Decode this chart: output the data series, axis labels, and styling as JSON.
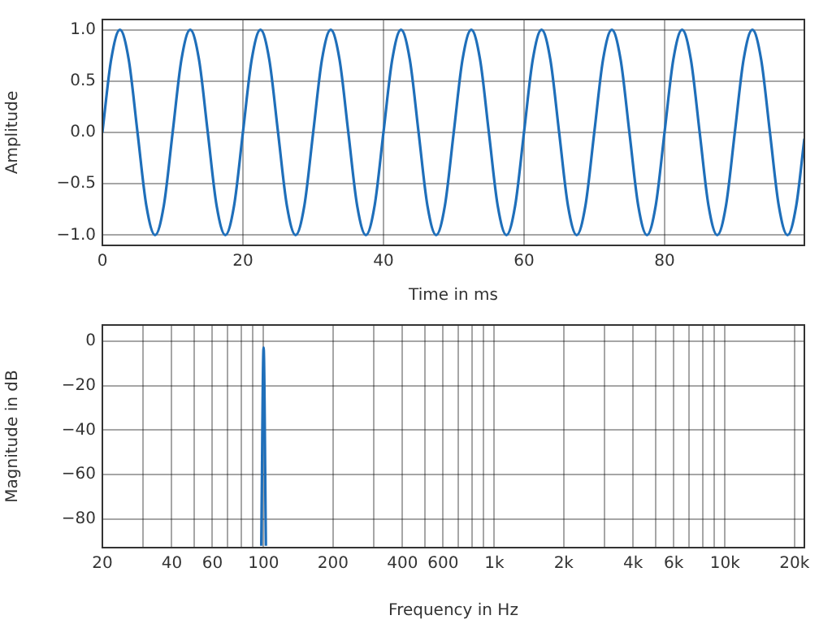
{
  "chart_data": [
    {
      "type": "line",
      "xlabel": "Time in ms",
      "ylabel": "Amplitude",
      "color": "#1f6fba",
      "marker": "none",
      "grid": true,
      "x": [
        0,
        1.25,
        2.5,
        3.75,
        5,
        6.25,
        7.5,
        8.75,
        10,
        11.25,
        12.5,
        13.75,
        15,
        16.25,
        17.5,
        18.75,
        20,
        21.25,
        22.5,
        23.75,
        25,
        26.25,
        27.5,
        28.75,
        30,
        31.25,
        32.5,
        33.75,
        35,
        36.25,
        37.5,
        38.75,
        40,
        41.25,
        42.5,
        43.75,
        45,
        46.25,
        47.5,
        48.75,
        50,
        51.25,
        52.5,
        53.75,
        55,
        56.25,
        57.5,
        58.75,
        60,
        61.25,
        62.5,
        63.75,
        65,
        66.25,
        67.5,
        68.75,
        70,
        71.25,
        72.5,
        73.75,
        75,
        76.25,
        77.5,
        78.75,
        80,
        81.25,
        82.5,
        83.75,
        85,
        86.25,
        87.5,
        88.75,
        90,
        91.25,
        92.5,
        93.75,
        95,
        96.25,
        97.5,
        98.75,
        99.9
      ],
      "values": [
        0,
        0.71,
        1,
        0.71,
        0,
        -0.71,
        -1,
        -0.71,
        0,
        0.71,
        1,
        0.71,
        0,
        -0.71,
        -1,
        -0.71,
        0,
        0.71,
        1,
        0.71,
        0,
        -0.71,
        -1,
        -0.71,
        0,
        0.71,
        1,
        0.71,
        0,
        -0.71,
        -1,
        -0.71,
        0,
        0.71,
        1,
        0.71,
        0,
        -0.71,
        -1,
        -0.71,
        0,
        0.71,
        1,
        0.71,
        0,
        -0.71,
        -1,
        -0.71,
        0,
        0.71,
        1,
        0.71,
        0,
        -0.71,
        -1,
        -0.71,
        0,
        0.71,
        1,
        0.71,
        0,
        -0.71,
        -1,
        -0.71,
        0,
        0.71,
        1,
        0.71,
        0,
        -0.71,
        -1,
        -0.71,
        0,
        0.71,
        1,
        0.71,
        0,
        -0.71,
        -1,
        -0.71,
        -0.06
      ],
      "xlim": [
        0,
        99.9
      ],
      "xticks": [
        0,
        20,
        40,
        60,
        80
      ],
      "ylim": [
        -1.1,
        1.1
      ],
      "yticks": [
        {
          "value": -1,
          "label": "−1.0"
        },
        {
          "value": -0.5,
          "label": "−0.5"
        },
        {
          "value": 0,
          "label": "0.0"
        },
        {
          "value": 0.5,
          "label": "0.5"
        },
        {
          "value": 1,
          "label": "1.0"
        }
      ]
    },
    {
      "type": "line",
      "xlabel": "Frequency in Hz",
      "ylabel": "Magnitude in dB",
      "color": "#1f6fba",
      "marker": "none",
      "grid": true,
      "log": "x",
      "x": [
        97.7,
        100,
        102.3
      ],
      "values": [
        -92,
        -3,
        -92
      ],
      "xlim": [
        20,
        22100
      ],
      "xticks": [
        20,
        {
          "value": 30,
          "label": null
        },
        40,
        {
          "value": 50,
          "label": null
        },
        60,
        {
          "value": 70,
          "label": null
        },
        {
          "value": 80,
          "label": null
        },
        {
          "value": 90,
          "label": null
        },
        100,
        200,
        {
          "value": 300,
          "label": null
        },
        400,
        {
          "value": 500,
          "label": null
        },
        600,
        {
          "value": 700,
          "label": null
        },
        {
          "value": 800,
          "label": null
        },
        {
          "value": 900,
          "label": null
        },
        {
          "value": 1000,
          "label": "1k"
        },
        {
          "value": 2000,
          "label": "2k"
        },
        {
          "value": 3000,
          "label": null
        },
        {
          "value": 4000,
          "label": "4k"
        },
        {
          "value": 5000,
          "label": null
        },
        {
          "value": 6000,
          "label": "6k"
        },
        {
          "value": 7000,
          "label": null
        },
        {
          "value": 8000,
          "label": null
        },
        {
          "value": 9000,
          "label": null
        },
        {
          "value": 10000,
          "label": "10k"
        },
        {
          "value": 20000,
          "label": "20k"
        }
      ],
      "ylim": [
        -92.8,
        7.2
      ],
      "yticks": [
        {
          "value": -80,
          "label": "−80"
        },
        {
          "value": -60,
          "label": "−60"
        },
        {
          "value": -40,
          "label": "−40"
        },
        {
          "value": -20,
          "label": "−20"
        },
        0
      ]
    }
  ]
}
